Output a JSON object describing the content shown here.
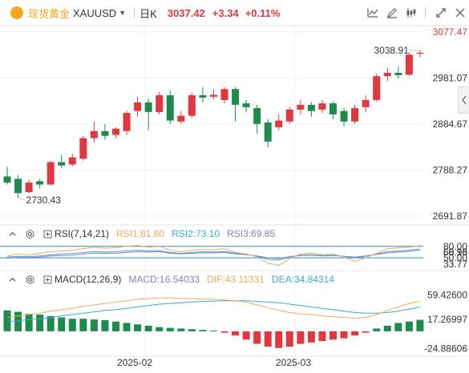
{
  "header": {
    "symbol_name": "现货黄金",
    "symbol_code": "XAUUSD",
    "dropdown_glyph": "▼",
    "period": "日K",
    "last_price": "3037.42",
    "change": "+3.34",
    "change_pct": "+0.11%"
  },
  "toolbar": {
    "icons": [
      "indicator-icon",
      "draw-icon",
      "candle-style-icon",
      "fullscreen-icon",
      "settings-icon"
    ]
  },
  "colors": {
    "up": "#e0383e",
    "down": "#1e8a4c",
    "rsi1": "#f5a85a",
    "rsi2": "#3aa9d6",
    "rsi3": "#8e7cc3",
    "macd_label": "#8e7cc3",
    "dif": "#f5a85a",
    "dea": "#3aa9d6",
    "level_line": "#2a8ecf"
  },
  "main_chart": {
    "y_ticks": [
      "3077.47",
      "2981.07",
      "2884.67",
      "2788.27",
      "2691.87"
    ],
    "y_min": 2691.87,
    "y_max": 3077.47,
    "current_price_tick": "3077.47",
    "annotations": {
      "high_label": "3038.91",
      "low_label": "2730.43"
    }
  },
  "chart_data": [
    {
      "type": "candlestick",
      "title": "现货黄金 XAUUSD 日K",
      "x_labels": [
        "2025-02",
        "2025-03"
      ],
      "ylim": [
        2691.87,
        3077.47
      ],
      "candles": [
        {
          "o": 2775,
          "h": 2795,
          "c": 2762,
          "l": 2758
        },
        {
          "o": 2770,
          "h": 2778,
          "c": 2740,
          "l": 2730.43
        },
        {
          "o": 2742,
          "h": 2768,
          "c": 2762,
          "l": 2740
        },
        {
          "o": 2765,
          "h": 2770,
          "c": 2758,
          "l": 2750
        },
        {
          "o": 2758,
          "h": 2808,
          "c": 2805,
          "l": 2756
        },
        {
          "o": 2805,
          "h": 2820,
          "c": 2798,
          "l": 2792
        },
        {
          "o": 2800,
          "h": 2822,
          "c": 2815,
          "l": 2796
        },
        {
          "o": 2812,
          "h": 2860,
          "c": 2855,
          "l": 2808
        },
        {
          "o": 2855,
          "h": 2890,
          "c": 2870,
          "l": 2846
        },
        {
          "o": 2870,
          "h": 2885,
          "c": 2860,
          "l": 2852
        },
        {
          "o": 2862,
          "h": 2878,
          "c": 2875,
          "l": 2855
        },
        {
          "o": 2870,
          "h": 2912,
          "c": 2908,
          "l": 2862
        },
        {
          "o": 2912,
          "h": 2942,
          "c": 2930,
          "l": 2900
        },
        {
          "o": 2930,
          "h": 2938,
          "c": 2910,
          "l": 2872
        },
        {
          "o": 2910,
          "h": 2952,
          "c": 2945,
          "l": 2905
        },
        {
          "o": 2945,
          "h": 2955,
          "c": 2892,
          "l": 2885
        },
        {
          "o": 2890,
          "h": 2912,
          "c": 2902,
          "l": 2885
        },
        {
          "o": 2902,
          "h": 2950,
          "c": 2945,
          "l": 2898
        },
        {
          "o": 2945,
          "h": 2962,
          "c": 2940,
          "l": 2930
        },
        {
          "o": 2942,
          "h": 2958,
          "c": 2946,
          "l": 2936
        },
        {
          "o": 2935,
          "h": 2962,
          "c": 2958,
          "l": 2928
        },
        {
          "o": 2958,
          "h": 2962,
          "c": 2925,
          "l": 2890
        },
        {
          "o": 2928,
          "h": 2935,
          "c": 2920,
          "l": 2910
        },
        {
          "o": 2918,
          "h": 2925,
          "c": 2885,
          "l": 2865
        },
        {
          "o": 2888,
          "h": 2895,
          "c": 2848,
          "l": 2836
        },
        {
          "o": 2878,
          "h": 2905,
          "c": 2892,
          "l": 2872
        },
        {
          "o": 2890,
          "h": 2920,
          "c": 2915,
          "l": 2885
        },
        {
          "o": 2915,
          "h": 2935,
          "c": 2925,
          "l": 2905
        },
        {
          "o": 2925,
          "h": 2930,
          "c": 2912,
          "l": 2900
        },
        {
          "o": 2915,
          "h": 2935,
          "c": 2928,
          "l": 2908
        },
        {
          "o": 2928,
          "h": 2932,
          "c": 2905,
          "l": 2895
        },
        {
          "o": 2912,
          "h": 2918,
          "c": 2890,
          "l": 2880
        },
        {
          "o": 2890,
          "h": 2925,
          "c": 2918,
          "l": 2885
        },
        {
          "o": 2920,
          "h": 2945,
          "c": 2935,
          "l": 2910
        },
        {
          "o": 2935,
          "h": 2990,
          "c": 2985,
          "l": 2932
        },
        {
          "o": 2985,
          "h": 3002,
          "c": 2992,
          "l": 2975
        },
        {
          "o": 2992,
          "h": 3005,
          "c": 2987,
          "l": 2980
        },
        {
          "o": 2988,
          "h": 3035,
          "c": 3030,
          "l": 2985
        },
        {
          "o": 3032,
          "h": 3038.91,
          "c": 3034,
          "l": 3025
        }
      ]
    },
    {
      "type": "line",
      "title": "RSI(7,14,21)",
      "series": [
        {
          "name": "RSI1",
          "last_value": "81.80"
        },
        {
          "name": "RSI2",
          "last_value": "73.10"
        },
        {
          "name": "RSI3",
          "last_value": "69.85"
        }
      ],
      "y_ticks": [
        "80.00",
        "68.96",
        "60.18",
        "50.00",
        "33.77"
      ]
    },
    {
      "type": "bar",
      "title": "MACD(12,26,9)",
      "series": [
        {
          "name": "MACD",
          "last_value": "16.54033"
        },
        {
          "name": "DIF",
          "last_value": "43.11331"
        },
        {
          "name": "DEA",
          "last_value": "34.84314"
        }
      ],
      "y_ticks": [
        "59.42600",
        "17.26997",
        "-24.88606"
      ]
    }
  ],
  "rsi_panel": {
    "name": "RSI(7,14,21)",
    "rsi1_label": "RSI1:81.80",
    "rsi2_label": "RSI2:73.10",
    "rsi3_label": "RSI3:69.85",
    "y_ticks": [
      "80.00",
      "68.96",
      "60.18",
      "50.00",
      "33.77"
    ],
    "rsi1": [
      55,
      60,
      57,
      62,
      66,
      68,
      70,
      74,
      78,
      75,
      77,
      80,
      82,
      78,
      80,
      70,
      66,
      70,
      72,
      71,
      74,
      64,
      60,
      52,
      36,
      30,
      48,
      60,
      62,
      58,
      60,
      52,
      40,
      50,
      62,
      74,
      76,
      78,
      81.8
    ],
    "rsi2": [
      52,
      54,
      53,
      55,
      58,
      60,
      61,
      64,
      66,
      65,
      66,
      68,
      70,
      68,
      69,
      64,
      62,
      64,
      66,
      65,
      67,
      62,
      59,
      54,
      46,
      44,
      52,
      57,
      58,
      56,
      57,
      54,
      50,
      54,
      60,
      66,
      68,
      70,
      73.1
    ],
    "rsi3": [
      50,
      51,
      51,
      52,
      55,
      56,
      57,
      60,
      62,
      62,
      62,
      64,
      66,
      65,
      66,
      62,
      60,
      62,
      63,
      63,
      64,
      60,
      58,
      55,
      50,
      48,
      53,
      56,
      57,
      55,
      56,
      54,
      52,
      55,
      59,
      63,
      65,
      67,
      69.85
    ]
  },
  "macd_panel": {
    "name": "MACD(12,26,9)",
    "macd_label": "MACD:16.54033",
    "dif_label": "DIF:43.11331",
    "dea_label": "DEA:34.84314",
    "y_ticks": [
      "59.42600",
      "17.26997",
      "-24.88606"
    ],
    "hist": [
      30,
      28,
      25,
      24,
      22,
      20,
      18,
      18,
      17,
      16,
      14,
      12,
      10,
      8,
      6,
      5,
      4,
      3,
      2,
      1,
      -2,
      -6,
      -12,
      -18,
      -22,
      -24,
      -22,
      -18,
      -16,
      -14,
      -12,
      -10,
      -6,
      -2,
      4,
      8,
      12,
      14,
      16.5
    ],
    "dif": [
      20,
      22,
      24,
      26,
      29,
      31,
      33,
      36,
      38,
      40,
      42,
      44,
      46,
      47,
      48,
      48,
      47,
      47,
      46,
      46,
      45,
      44,
      42,
      38,
      34,
      30,
      27,
      25,
      24,
      22,
      21,
      20,
      19,
      20,
      24,
      30,
      35,
      40,
      43.1
    ],
    "dea": [
      14,
      15,
      17,
      18,
      20,
      22,
      24,
      26,
      28,
      30,
      31,
      33,
      35,
      37,
      39,
      40,
      41,
      42,
      43,
      43.5,
      44,
      44,
      44,
      43,
      42,
      41,
      39,
      37,
      35,
      33,
      31,
      29,
      27,
      26,
      26,
      27,
      29,
      32,
      34.8
    ]
  },
  "x_axis": {
    "labels": [
      "2025-02",
      "2025-03"
    ]
  }
}
